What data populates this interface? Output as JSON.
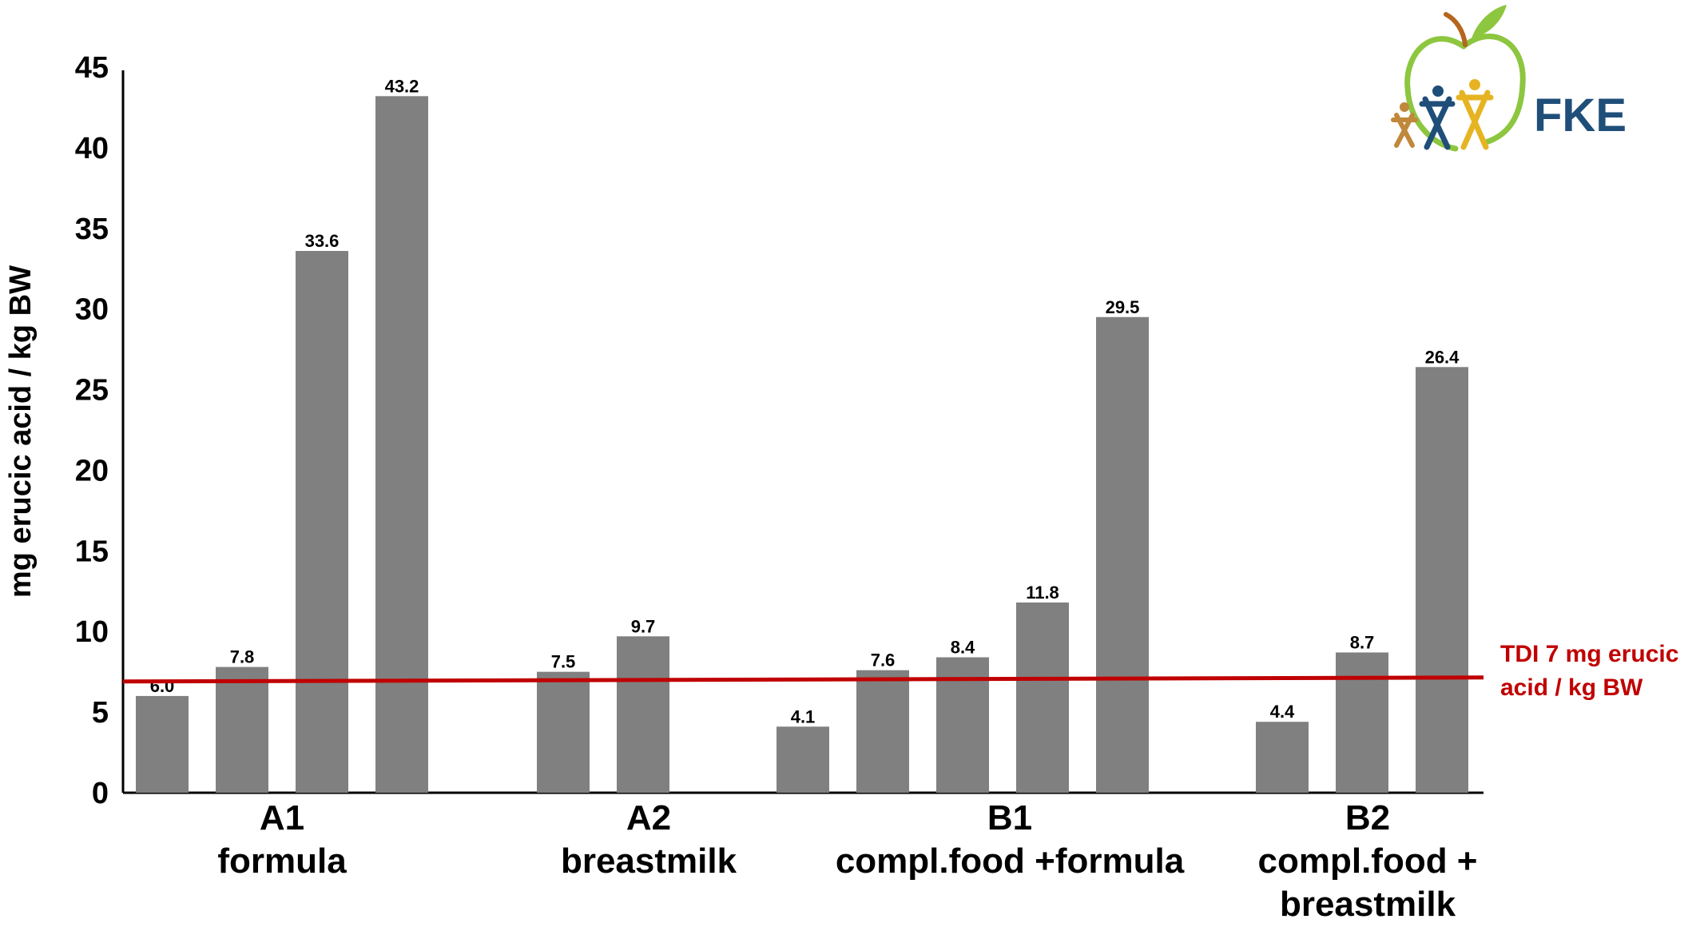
{
  "chart_data": {
    "type": "bar",
    "ylabel": "mg erucic acid / kg BW",
    "xlabel": "",
    "ylim": [
      0,
      45
    ],
    "yticks": [
      0,
      5,
      10,
      15,
      20,
      25,
      30,
      35,
      40,
      45
    ],
    "grid": false,
    "bar_color": "#808080",
    "groups": [
      {
        "id": "A1",
        "label_lines": [
          "A1",
          "formula"
        ],
        "values": [
          6.0,
          7.8,
          33.6,
          43.2
        ],
        "value_labels": [
          "6.0",
          "7.8",
          "33.6",
          "43.2"
        ]
      },
      {
        "id": "A2",
        "label_lines": [
          "A2",
          "breastmilk"
        ],
        "values": [
          7.5,
          9.7
        ],
        "value_labels": [
          "7.5",
          "9.7"
        ]
      },
      {
        "id": "B1",
        "label_lines": [
          "B1",
          "compl.food +formula"
        ],
        "values": [
          4.1,
          7.6,
          8.4,
          11.8,
          29.5
        ],
        "value_labels": [
          "4.1",
          "7.6",
          "8.4",
          "11.8",
          "29.5"
        ]
      },
      {
        "id": "B2",
        "label_lines": [
          "B2",
          "compl.food +",
          "breastmilk"
        ],
        "values": [
          4.4,
          8.7,
          26.4
        ],
        "value_labels": [
          "4.4",
          "8.7",
          "26.4"
        ]
      }
    ],
    "reference_line": {
      "value": 7,
      "color": "#c00000",
      "label_lines": [
        "TDI 7 mg erucic",
        "acid / kg BW"
      ]
    }
  },
  "logo": {
    "text": "FKE",
    "text_color": "#1f4e79",
    "apple_color": "#8dc63f",
    "stem_color": "#b5651d",
    "figure_colors": [
      "#c0883a",
      "#1f4e79",
      "#e6b422"
    ]
  }
}
